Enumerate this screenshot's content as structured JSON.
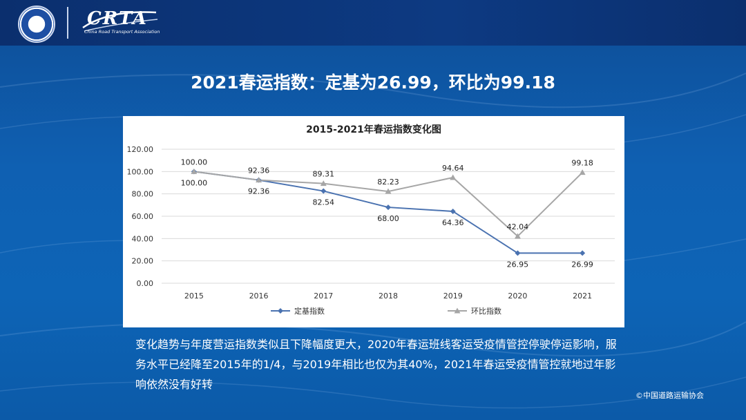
{
  "header": {
    "logo_text": "CRTA",
    "logo_subtext": "China Road Transport Association"
  },
  "headline": "2021春运指数：定基为26.99，环比为99.18",
  "chart_data": {
    "type": "line",
    "title": "2015-2021年春运指数变化图",
    "categories": [
      "2015",
      "2016",
      "2017",
      "2018",
      "2019",
      "2020",
      "2021"
    ],
    "ylim": [
      0,
      120
    ],
    "yticks": [
      "0.00",
      "20.00",
      "40.00",
      "60.00",
      "80.00",
      "100.00",
      "120.00"
    ],
    "grid": true,
    "legend_position": "bottom",
    "series": [
      {
        "name": "定基指数",
        "values": [
          100.0,
          92.36,
          82.54,
          68.0,
          64.36,
          26.95,
          26.99
        ],
        "labels": [
          "100.00",
          "92.36",
          "82.54",
          "68.00",
          "64.36",
          "26.95",
          "26.99"
        ],
        "color": "#4a72b0",
        "marker": "diamond"
      },
      {
        "name": "环比指数",
        "values": [
          100.0,
          92.36,
          89.31,
          82.23,
          94.64,
          42.04,
          99.18
        ],
        "labels": [
          "100.00",
          "92.36",
          "89.31",
          "82.23",
          "94.64",
          "42.04",
          "99.18"
        ],
        "color": "#a6a6a6",
        "marker": "triangle"
      }
    ]
  },
  "caption": "变化趋势与年度营运指数类似且下降幅度更大，2020年春运班线客运受疫情管控停驶停运影响，服务水平已经降至2015年的1/4，与2019年相比也仅为其40%，2021年春运受疫情管控就地过年影响依然没有好转",
  "copyright": "©中国道路运输协会"
}
